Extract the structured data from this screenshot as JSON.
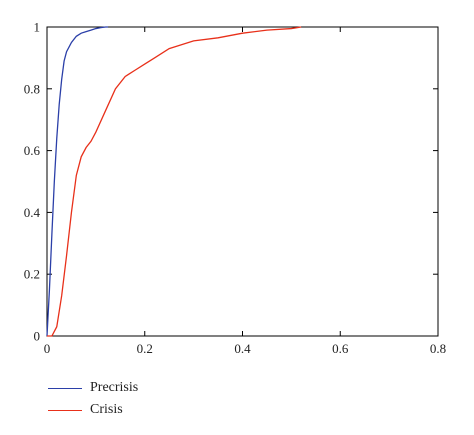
{
  "chart_data": {
    "type": "line",
    "title": "",
    "xlabel": "",
    "ylabel": "",
    "xlim": [
      0,
      0.8
    ],
    "ylim": [
      0,
      1
    ],
    "xticks": [
      "0",
      "0.2",
      "0.4",
      "0.6",
      "0.8"
    ],
    "yticks": [
      "0",
      "0.2",
      "0.4",
      "0.6",
      "0.8",
      "1"
    ],
    "grid": false,
    "legend_position": "bottom-left",
    "series": [
      {
        "name": "Precrisis",
        "color": "#2b3fa8",
        "x": [
          0,
          0.005,
          0.01,
          0.015,
          0.02,
          0.025,
          0.03,
          0.035,
          0.04,
          0.05,
          0.06,
          0.07,
          0.08,
          0.09,
          0.1,
          0.11,
          0.12,
          0.125
        ],
        "y": [
          0,
          0.15,
          0.33,
          0.5,
          0.64,
          0.75,
          0.83,
          0.89,
          0.92,
          0.95,
          0.97,
          0.98,
          0.985,
          0.99,
          0.995,
          0.998,
          1.0,
          1.0
        ]
      },
      {
        "name": "Crisis",
        "color": "#e8301a",
        "x": [
          0,
          0.01,
          0.02,
          0.03,
          0.04,
          0.05,
          0.06,
          0.07,
          0.08,
          0.09,
          0.1,
          0.12,
          0.14,
          0.16,
          0.18,
          0.2,
          0.22,
          0.25,
          0.3,
          0.35,
          0.4,
          0.45,
          0.5,
          0.52
        ],
        "y": [
          0,
          0,
          0.03,
          0.13,
          0.26,
          0.4,
          0.52,
          0.58,
          0.61,
          0.63,
          0.66,
          0.73,
          0.8,
          0.84,
          0.86,
          0.88,
          0.9,
          0.93,
          0.955,
          0.965,
          0.98,
          0.99,
          0.995,
          1.0
        ]
      }
    ]
  }
}
